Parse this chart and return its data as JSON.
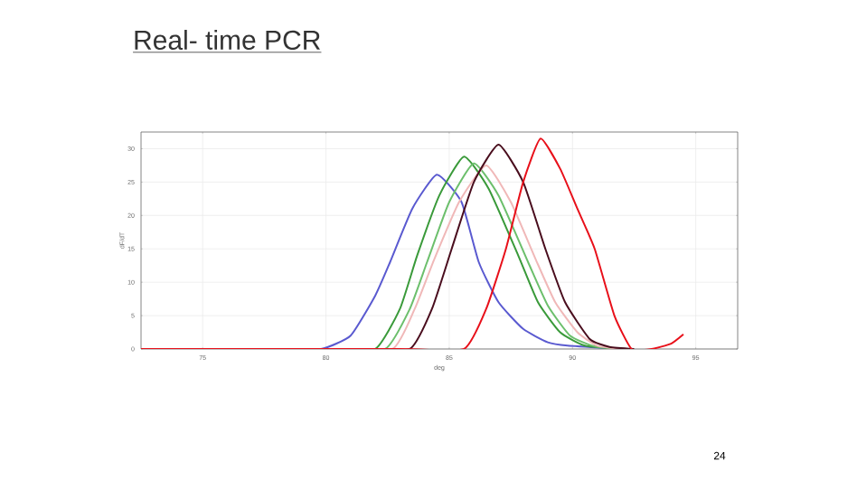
{
  "chart_data": {
    "type": "line",
    "title": "Real- time PCR",
    "xlabel": "deg",
    "ylabel": "dF/dT",
    "annotations": [
      "24"
    ],
    "xlim": [
      72.5,
      96.7
    ],
    "ylim": [
      0,
      32.5
    ],
    "xticks": [
      75,
      80,
      85,
      90,
      95
    ],
    "yticks": [
      0,
      5,
      10,
      15,
      20,
      25,
      30
    ],
    "grid": true,
    "marker": "none",
    "line_style": "solid",
    "series": [
      {
        "color": "#5a5ad0",
        "x": [
          72.5,
          78,
          79.8,
          81,
          82,
          82.6,
          83.5,
          84.5,
          85.5,
          86.2,
          87,
          88,
          89,
          89.8,
          92
        ],
        "values": [
          0,
          0,
          0,
          2,
          8,
          13,
          21,
          26.1,
          22,
          13,
          7,
          3,
          1,
          0.5,
          0
        ]
      },
      {
        "color": "#3a9a3a",
        "x": [
          72.5,
          80,
          82,
          83,
          83.7,
          84.6,
          85.6,
          86.6,
          87.8,
          88.6,
          89.5,
          90.5,
          92
        ],
        "values": [
          0,
          0,
          0,
          6,
          14,
          23,
          28.8,
          24,
          14,
          7,
          2.5,
          0.5,
          0
        ]
      },
      {
        "color": "#6cbf6c",
        "x": [
          72.5,
          80,
          82.4,
          83.4,
          84.1,
          85,
          86,
          87,
          88.2,
          89,
          89.9,
          90.9,
          92.2
        ],
        "values": [
          0,
          0,
          0,
          6,
          13,
          22,
          27.8,
          23,
          13,
          6.5,
          2,
          0.4,
          0
        ]
      },
      {
        "color": "#f0b8b8",
        "x": [
          72.5,
          80,
          82.7,
          83.6,
          84.4,
          85.4,
          86.5,
          87.5,
          88.5,
          89.3,
          90.2,
          91,
          92
        ],
        "values": [
          0,
          0,
          0,
          6,
          13.5,
          22,
          27.5,
          22,
          13.5,
          7,
          2.5,
          0.5,
          0
        ]
      },
      {
        "color": "#4a0e1e",
        "x": [
          72.5,
          81,
          83.4,
          84.3,
          85.1,
          86,
          87,
          88,
          88.9,
          89.7,
          90.7,
          91.5,
          92.5
        ],
        "values": [
          0,
          0,
          0,
          6,
          15,
          25,
          30.6,
          25,
          15,
          7,
          1.5,
          0.3,
          0
        ]
      },
      {
        "color": "#e8101a",
        "x": [
          72.5,
          83,
          85.6,
          86.5,
          87.3,
          88,
          88.7,
          89.5,
          90.2,
          90.9,
          91.7,
          92.4,
          93.2,
          94,
          94.5
        ],
        "values": [
          0,
          0,
          0,
          6,
          15,
          25,
          31.5,
          27,
          21,
          15,
          5,
          0,
          0,
          0.8,
          2.2
        ]
      }
    ]
  }
}
